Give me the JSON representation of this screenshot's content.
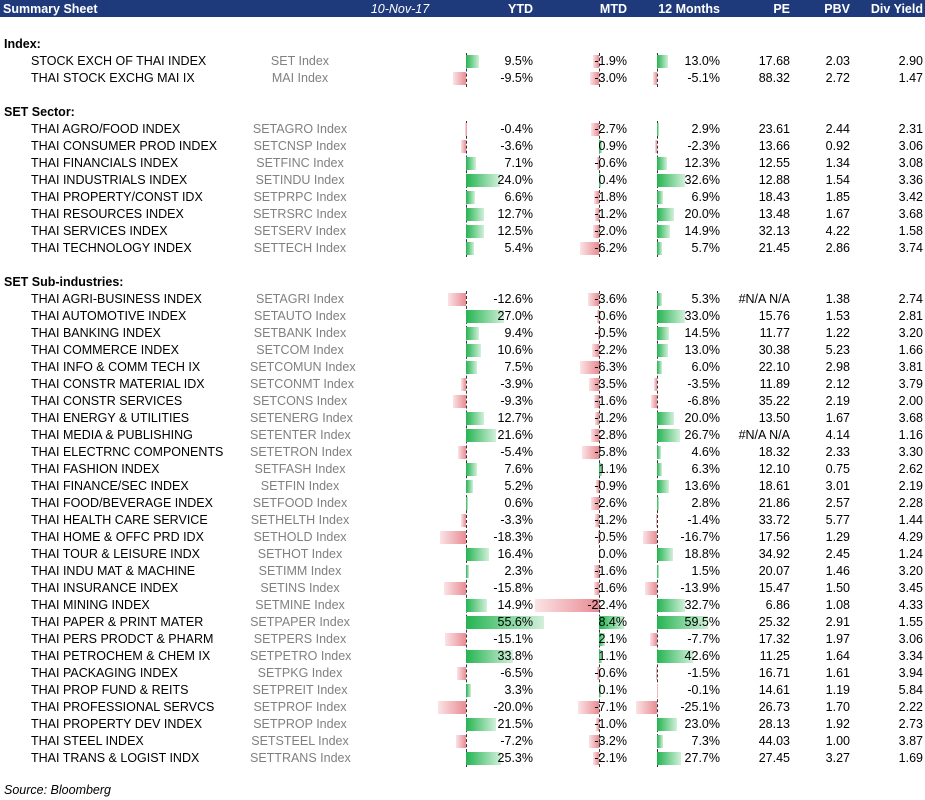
{
  "header": {
    "title": "Summary Sheet",
    "date": "10-Nov-17",
    "columns": [
      "YTD",
      "MTD",
      "12 Months",
      "PE",
      "PBV",
      "Div Yield"
    ]
  },
  "colors": {
    "header_bg": "#1f3a7a",
    "positive_bar": "#24b451",
    "negative_bar": "#e88c93",
    "ticker_text": "#808080"
  },
  "sections": [
    {
      "title": "Index:",
      "rows": [
        {
          "name": "STOCK EXCH OF THAI INDEX",
          "ticker": "SET Index",
          "ytd": "9.5%",
          "mtd": "-1.9%",
          "m12": "13.0%",
          "pe": "17.68",
          "pbv": "2.03",
          "dy": "2.90"
        },
        {
          "name": "THAI STOCK EXCHG MAI IX",
          "ticker": "MAI Index",
          "ytd": "-9.5%",
          "mtd": "-3.0%",
          "m12": "-5.1%",
          "pe": "88.32",
          "pbv": "2.72",
          "dy": "1.47"
        }
      ]
    },
    {
      "title": "SET Sector:",
      "rows": [
        {
          "name": "THAI AGRO/FOOD INDEX",
          "ticker": "SETAGRO Index",
          "ytd": "-0.4%",
          "mtd": "-2.7%",
          "m12": "2.9%",
          "pe": "23.61",
          "pbv": "2.44",
          "dy": "2.31"
        },
        {
          "name": "THAI CONSUMER PROD INDEX",
          "ticker": "SETCNSP Index",
          "ytd": "-3.6%",
          "mtd": "0.9%",
          "m12": "-2.3%",
          "pe": "13.66",
          "pbv": "0.92",
          "dy": "3.06"
        },
        {
          "name": "THAI FINANCIALS INDEX",
          "ticker": "SETFINC Index",
          "ytd": "7.1%",
          "mtd": "-0.6%",
          "m12": "12.3%",
          "pe": "12.55",
          "pbv": "1.34",
          "dy": "3.08"
        },
        {
          "name": "THAI INDUSTRIALS INDEX",
          "ticker": "SETINDU Index",
          "ytd": "24.0%",
          "mtd": "0.4%",
          "m12": "32.6%",
          "pe": "12.88",
          "pbv": "1.54",
          "dy": "3.36"
        },
        {
          "name": "THAI PROPERTY/CONST IDX",
          "ticker": "SETPRPC Index",
          "ytd": "6.6%",
          "mtd": "-1.8%",
          "m12": "6.9%",
          "pe": "18.43",
          "pbv": "1.85",
          "dy": "3.42"
        },
        {
          "name": "THAI RESOURCES INDEX",
          "ticker": "SETRSRC Index",
          "ytd": "12.7%",
          "mtd": "-1.2%",
          "m12": "20.0%",
          "pe": "13.48",
          "pbv": "1.67",
          "dy": "3.68"
        },
        {
          "name": "THAI SERVICES INDEX",
          "ticker": "SETSERV Index",
          "ytd": "12.5%",
          "mtd": "-2.0%",
          "m12": "14.9%",
          "pe": "32.13",
          "pbv": "4.22",
          "dy": "1.58"
        },
        {
          "name": "THAI TECHNOLOGY INDEX",
          "ticker": "SETTECH Index",
          "ytd": "5.4%",
          "mtd": "-6.2%",
          "m12": "5.7%",
          "pe": "21.45",
          "pbv": "2.86",
          "dy": "3.74"
        }
      ]
    },
    {
      "title": "SET Sub-industries:",
      "rows": [
        {
          "name": "THAI AGRI-BUSINESS INDEX",
          "ticker": "SETAGRI Index",
          "ytd": "-12.6%",
          "mtd": "-3.6%",
          "m12": "5.3%",
          "pe": "#N/A N/A",
          "pbv": "1.38",
          "dy": "2.74"
        },
        {
          "name": "THAI AUTOMOTIVE INDEX",
          "ticker": "SETAUTO Index",
          "ytd": "27.0%",
          "mtd": "-0.6%",
          "m12": "33.0%",
          "pe": "15.76",
          "pbv": "1.53",
          "dy": "2.81"
        },
        {
          "name": "THAI BANKING INDEX",
          "ticker": "SETBANK Index",
          "ytd": "9.4%",
          "mtd": "-0.5%",
          "m12": "14.5%",
          "pe": "11.77",
          "pbv": "1.22",
          "dy": "3.20"
        },
        {
          "name": "THAI COMMERCE INDEX",
          "ticker": "SETCOM Index",
          "ytd": "10.6%",
          "mtd": "-2.2%",
          "m12": "13.0%",
          "pe": "30.38",
          "pbv": "5.23",
          "dy": "1.66"
        },
        {
          "name": "THAI INFO & COMM TECH IX",
          "ticker": "SETCOMUN Index",
          "ytd": "7.5%",
          "mtd": "-6.3%",
          "m12": "6.0%",
          "pe": "22.10",
          "pbv": "2.98",
          "dy": "3.81"
        },
        {
          "name": "THAI CONSTR MATERIAL IDX",
          "ticker": "SETCONMT Index",
          "ytd": "-3.9%",
          "mtd": "-3.5%",
          "m12": "-3.5%",
          "pe": "11.89",
          "pbv": "2.12",
          "dy": "3.79"
        },
        {
          "name": "THAI CONSTR SERVICES",
          "ticker": "SETCONS Index",
          "ytd": "-9.3%",
          "mtd": "-1.6%",
          "m12": "-6.8%",
          "pe": "35.22",
          "pbv": "2.19",
          "dy": "2.00"
        },
        {
          "name": "THAI ENERGY & UTILITIES",
          "ticker": "SETENERG Index",
          "ytd": "12.7%",
          "mtd": "-1.2%",
          "m12": "20.0%",
          "pe": "13.50",
          "pbv": "1.67",
          "dy": "3.68"
        },
        {
          "name": "THAI MEDIA & PUBLISHING",
          "ticker": "SETENTER Index",
          "ytd": "21.6%",
          "mtd": "-2.8%",
          "m12": "26.7%",
          "pe": "#N/A N/A",
          "pbv": "4.14",
          "dy": "1.16"
        },
        {
          "name": "THAI ELECTRNC COMPONENTS",
          "ticker": "SETETRON Index",
          "ytd": "-5.4%",
          "mtd": "-5.8%",
          "m12": "4.6%",
          "pe": "18.32",
          "pbv": "2.33",
          "dy": "3.30"
        },
        {
          "name": "THAI FASHION INDEX",
          "ticker": "SETFASH Index",
          "ytd": "7.6%",
          "mtd": "1.1%",
          "m12": "6.3%",
          "pe": "12.10",
          "pbv": "0.75",
          "dy": "2.62"
        },
        {
          "name": "THAI FINANCE/SEC INDEX",
          "ticker": "SETFIN Index",
          "ytd": "5.2%",
          "mtd": "-0.9%",
          "m12": "13.6%",
          "pe": "18.61",
          "pbv": "3.01",
          "dy": "2.19"
        },
        {
          "name": "THAI FOOD/BEVERAGE INDEX",
          "ticker": "SETFOOD Index",
          "ytd": "0.6%",
          "mtd": "-2.6%",
          "m12": "2.8%",
          "pe": "21.86",
          "pbv": "2.57",
          "dy": "2.28"
        },
        {
          "name": "THAI HEALTH CARE SERVICE",
          "ticker": "SETHELTH Index",
          "ytd": "-3.3%",
          "mtd": "-1.2%",
          "m12": "-1.4%",
          "pe": "33.72",
          "pbv": "5.77",
          "dy": "1.44"
        },
        {
          "name": "THAI HOME & OFFC PRD IDX",
          "ticker": "SETHOLD Index",
          "ytd": "-18.3%",
          "mtd": "-0.5%",
          "m12": "-16.7%",
          "pe": "17.56",
          "pbv": "1.29",
          "dy": "4.29"
        },
        {
          "name": "THAI TOUR & LEISURE INDX",
          "ticker": "SETHOT Index",
          "ytd": "16.4%",
          "mtd": "0.0%",
          "m12": "18.8%",
          "pe": "34.92",
          "pbv": "2.45",
          "dy": "1.24"
        },
        {
          "name": "THAI INDU MAT & MACHINE",
          "ticker": "SETIMM Index",
          "ytd": "2.3%",
          "mtd": "-1.6%",
          "m12": "1.5%",
          "pe": "20.07",
          "pbv": "1.46",
          "dy": "3.20"
        },
        {
          "name": "THAI INSURANCE INDEX",
          "ticker": "SETINS Index",
          "ytd": "-15.8%",
          "mtd": "-1.6%",
          "m12": "-13.9%",
          "pe": "15.47",
          "pbv": "1.50",
          "dy": "3.45"
        },
        {
          "name": "THAI MINING INDEX",
          "ticker": "SETMINE Index",
          "ytd": "14.9%",
          "mtd": "-22.4%",
          "m12": "32.7%",
          "pe": "6.86",
          "pbv": "1.08",
          "dy": "4.33"
        },
        {
          "name": "THAI PAPER & PRINT MATER",
          "ticker": "SETPAPER Index",
          "ytd": "55.6%",
          "mtd": "8.4%",
          "m12": "59.5%",
          "pe": "25.32",
          "pbv": "2.91",
          "dy": "1.55"
        },
        {
          "name": "THAI PERS PRODCT & PHARM",
          "ticker": "SETPERS Index",
          "ytd": "-15.1%",
          "mtd": "2.1%",
          "m12": "-7.7%",
          "pe": "17.32",
          "pbv": "1.97",
          "dy": "3.06"
        },
        {
          "name": "THAI PETROCHEM & CHEM IX",
          "ticker": "SETPETRO Index",
          "ytd": "33.8%",
          "mtd": "1.1%",
          "m12": "42.6%",
          "pe": "11.25",
          "pbv": "1.64",
          "dy": "3.34"
        },
        {
          "name": "THAI PACKAGING INDEX",
          "ticker": "SETPKG Index",
          "ytd": "-6.5%",
          "mtd": "-0.6%",
          "m12": "-1.5%",
          "pe": "16.71",
          "pbv": "1.61",
          "dy": "3.94"
        },
        {
          "name": "THAI PROP FUND & REITS",
          "ticker": "SETPREIT Index",
          "ytd": "3.3%",
          "mtd": "0.1%",
          "m12": "-0.1%",
          "pe": "14.61",
          "pbv": "1.19",
          "dy": "5.84"
        },
        {
          "name": "THAI PROFESSIONAL SERVCS",
          "ticker": "SETPROF Index",
          "ytd": "-20.0%",
          "mtd": "-7.1%",
          "m12": "-25.1%",
          "pe": "26.73",
          "pbv": "1.70",
          "dy": "2.22"
        },
        {
          "name": "THAI PROPERTY DEV INDEX",
          "ticker": "SETPROP Index",
          "ytd": "21.5%",
          "mtd": "-1.0%",
          "m12": "23.0%",
          "pe": "28.13",
          "pbv": "1.92",
          "dy": "2.73"
        },
        {
          "name": "THAI STEEL INDEX",
          "ticker": "SETSTEEL Index",
          "ytd": "-7.2%",
          "mtd": "-3.2%",
          "m12": "7.3%",
          "pe": "44.03",
          "pbv": "1.00",
          "dy": "3.87"
        },
        {
          "name": "THAI TRANS & LOGIST INDX",
          "ticker": "SETTRANS Index",
          "ytd": "25.3%",
          "mtd": "-2.1%",
          "m12": "27.7%",
          "pe": "27.45",
          "pbv": "3.27",
          "dy": "1.69"
        }
      ]
    }
  ],
  "footer": {
    "source": "Source: Bloomberg"
  }
}
